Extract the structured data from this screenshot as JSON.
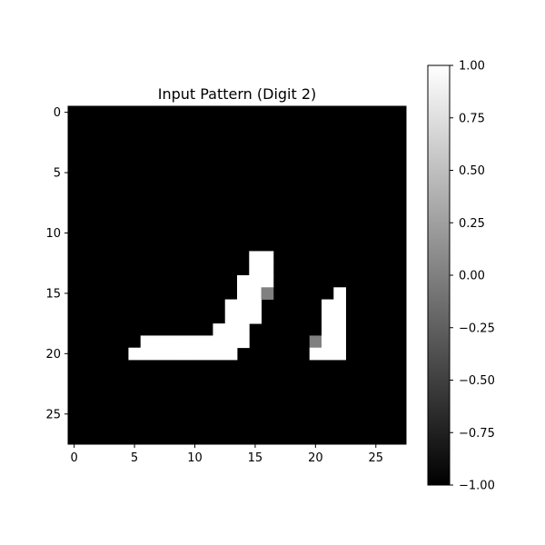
{
  "chart_data": {
    "type": "heatmap",
    "title": "Input Pattern (Digit 2)",
    "xlabel": "",
    "ylabel": "",
    "rows": 28,
    "cols": 28,
    "default_value": -1,
    "pixels": [
      {
        "row": 12,
        "col": 15,
        "value": 1
      },
      {
        "row": 12,
        "col": 16,
        "value": 1
      },
      {
        "row": 13,
        "col": 15,
        "value": 1
      },
      {
        "row": 13,
        "col": 16,
        "value": 1
      },
      {
        "row": 14,
        "col": 14,
        "value": 1
      },
      {
        "row": 14,
        "col": 15,
        "value": 1
      },
      {
        "row": 14,
        "col": 16,
        "value": 1
      },
      {
        "row": 15,
        "col": 14,
        "value": 1
      },
      {
        "row": 15,
        "col": 15,
        "value": 1
      },
      {
        "row": 15,
        "col": 16,
        "value": 0
      },
      {
        "row": 15,
        "col": 22,
        "value": 1
      },
      {
        "row": 16,
        "col": 13,
        "value": 1
      },
      {
        "row": 16,
        "col": 14,
        "value": 1
      },
      {
        "row": 16,
        "col": 15,
        "value": 1
      },
      {
        "row": 16,
        "col": 21,
        "value": 1
      },
      {
        "row": 16,
        "col": 22,
        "value": 1
      },
      {
        "row": 17,
        "col": 13,
        "value": 1
      },
      {
        "row": 17,
        "col": 14,
        "value": 1
      },
      {
        "row": 17,
        "col": 15,
        "value": 1
      },
      {
        "row": 17,
        "col": 21,
        "value": 1
      },
      {
        "row": 17,
        "col": 22,
        "value": 1
      },
      {
        "row": 18,
        "col": 12,
        "value": 1
      },
      {
        "row": 18,
        "col": 13,
        "value": 1
      },
      {
        "row": 18,
        "col": 14,
        "value": 1
      },
      {
        "row": 18,
        "col": 21,
        "value": 1
      },
      {
        "row": 18,
        "col": 22,
        "value": 1
      },
      {
        "row": 19,
        "col": 6,
        "value": 1
      },
      {
        "row": 19,
        "col": 7,
        "value": 1
      },
      {
        "row": 19,
        "col": 8,
        "value": 1
      },
      {
        "row": 19,
        "col": 9,
        "value": 1
      },
      {
        "row": 19,
        "col": 10,
        "value": 1
      },
      {
        "row": 19,
        "col": 11,
        "value": 1
      },
      {
        "row": 19,
        "col": 12,
        "value": 1
      },
      {
        "row": 19,
        "col": 13,
        "value": 1
      },
      {
        "row": 19,
        "col": 14,
        "value": 1
      },
      {
        "row": 19,
        "col": 20,
        "value": 0
      },
      {
        "row": 19,
        "col": 21,
        "value": 1
      },
      {
        "row": 19,
        "col": 22,
        "value": 1
      },
      {
        "row": 20,
        "col": 5,
        "value": 1
      },
      {
        "row": 20,
        "col": 6,
        "value": 1
      },
      {
        "row": 20,
        "col": 7,
        "value": 1
      },
      {
        "row": 20,
        "col": 8,
        "value": 1
      },
      {
        "row": 20,
        "col": 9,
        "value": 1
      },
      {
        "row": 20,
        "col": 10,
        "value": 1
      },
      {
        "row": 20,
        "col": 11,
        "value": 1
      },
      {
        "row": 20,
        "col": 12,
        "value": 1
      },
      {
        "row": 20,
        "col": 13,
        "value": 1
      },
      {
        "row": 20,
        "col": 20,
        "value": 1
      },
      {
        "row": 20,
        "col": 21,
        "value": 1
      },
      {
        "row": 20,
        "col": 22,
        "value": 1
      }
    ],
    "xticks": [
      0,
      5,
      10,
      15,
      20,
      25
    ],
    "yticks": [
      0,
      5,
      10,
      15,
      20,
      25
    ],
    "colorbar": {
      "min": -1.0,
      "max": 1.0,
      "ticks": [
        "-1.00",
        "-0.75",
        "-0.50",
        "-0.25",
        "0.00",
        "0.25",
        "0.50",
        "0.75",
        "1.00"
      ],
      "colormap": "gray"
    },
    "grid": false,
    "legend": "none"
  }
}
